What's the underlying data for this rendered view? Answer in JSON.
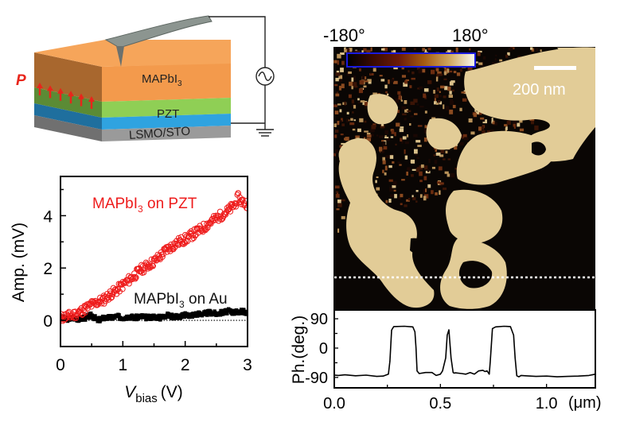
{
  "schematic": {
    "polarization_label": "P",
    "layers": [
      {
        "name": "MAPbI",
        "sub": "3",
        "color": "#f39a4c",
        "side_color": "#a8672e"
      },
      {
        "name": "PZT",
        "sub": "",
        "color": "#8fcf55",
        "side_color": "#5b8b35"
      },
      {
        "name": "LSMO/STO",
        "sub": "",
        "color": "#2fa3e0",
        "side_color": "#1f6f9e"
      },
      {
        "name": "",
        "sub": "",
        "color": "#9a9a9a",
        "side_color": "#707070"
      }
    ],
    "arrow_color": "#e8251b",
    "arrow_count": 6,
    "circuit": {
      "source_symbol": "ac-source",
      "ground_symbol": "ground"
    }
  },
  "colors": {
    "red_series": "#ee1c1c",
    "black_series": "#000000",
    "axis": "#000000",
    "colorbar_border": "#1a1adf",
    "scalebar": "#ffffff",
    "domain_light": "#e2cc97",
    "domain_dark": "#0a0604",
    "domain_mid": "#5e2a10"
  },
  "chart_data": [
    {
      "type": "scatter",
      "title": "",
      "xlabel": "V",
      "xlabel_sub": "bias",
      "xlabel_unit": "(V)",
      "ylabel": "Amp. (mV)",
      "xlim": [
        0,
        3
      ],
      "ylim": [
        -1,
        5.5
      ],
      "xticks": [
        0,
        1,
        2,
        3
      ],
      "xticks_minor": [
        0.5,
        1.5,
        2.5
      ],
      "yticks": [
        0,
        2,
        4
      ],
      "yticks_minor": [
        1,
        3,
        5
      ],
      "zero_line": "dotted",
      "series": [
        {
          "name": "MAPbI3 on PZT",
          "label_main": "MAPbI",
          "label_sub": "3",
          "label_rest": " on PZT",
          "marker": "open-circle",
          "x": [
            0.0,
            0.1,
            0.2,
            0.3,
            0.4,
            0.5,
            0.6,
            0.7,
            0.8,
            0.9,
            1.0,
            1.1,
            1.2,
            1.3,
            1.4,
            1.5,
            1.6,
            1.7,
            1.8,
            1.9,
            2.0,
            2.1,
            2.2,
            2.3,
            2.4,
            2.5,
            2.6,
            2.7,
            2.8,
            2.85,
            2.9,
            3.0
          ],
          "y": [
            0.1,
            0.15,
            0.2,
            0.3,
            0.45,
            0.6,
            0.7,
            0.8,
            1.0,
            1.15,
            1.35,
            1.55,
            1.75,
            1.95,
            2.1,
            2.25,
            2.45,
            2.7,
            2.85,
            3.0,
            3.1,
            3.25,
            3.4,
            3.55,
            3.75,
            3.9,
            4.05,
            4.2,
            4.45,
            4.7,
            4.55,
            4.45
          ]
        },
        {
          "name": "MAPbI3 on Au",
          "label_main": "MAPbI",
          "label_sub": "3",
          "label_rest": " on Au",
          "marker": "filled-square",
          "x": [
            0.0,
            0.1,
            0.2,
            0.3,
            0.4,
            0.5,
            0.6,
            0.7,
            0.8,
            0.9,
            1.0,
            1.1,
            1.2,
            1.3,
            1.4,
            1.5,
            1.6,
            1.7,
            1.8,
            1.9,
            2.0,
            2.1,
            2.2,
            2.3,
            2.4,
            2.5,
            2.6,
            2.7,
            2.8,
            2.9,
            3.0
          ],
          "y": [
            0.1,
            0.05,
            0.1,
            0.05,
            0.1,
            0.2,
            0.0,
            0.1,
            0.1,
            0.15,
            0.1,
            0.15,
            0.1,
            0.15,
            0.1,
            0.15,
            0.1,
            0.2,
            0.15,
            0.15,
            0.2,
            0.2,
            0.25,
            0.25,
            0.3,
            0.25,
            0.3,
            0.35,
            0.3,
            0.35,
            0.3
          ]
        }
      ]
    },
    {
      "type": "line",
      "title": "",
      "xlabel": "",
      "xlabel_unit": "(μm)",
      "ylabel": "Ph.(deg.)",
      "xlim": [
        0,
        1.23
      ],
      "ylim": [
        -122,
        117
      ],
      "xticks": [
        0.0,
        0.5,
        1.0
      ],
      "xtick_labels": [
        "0.0",
        "0.5",
        "1.0"
      ],
      "xticks_minor": [
        0.25,
        0.75
      ],
      "yticks": [
        90,
        0,
        -90
      ],
      "yticks_minor": [
        45,
        -45
      ],
      "series": [
        {
          "name": "phase profile",
          "x": [
            0.0,
            0.02,
            0.05,
            0.1,
            0.15,
            0.2,
            0.23,
            0.255,
            0.262,
            0.27,
            0.28,
            0.33,
            0.37,
            0.38,
            0.385,
            0.39,
            0.4,
            0.43,
            0.46,
            0.48,
            0.5,
            0.51,
            0.525,
            0.532,
            0.54,
            0.55,
            0.56,
            0.565,
            0.57,
            0.6,
            0.62,
            0.64,
            0.66,
            0.68,
            0.7,
            0.71,
            0.72,
            0.73,
            0.735,
            0.745,
            0.76,
            0.8,
            0.83,
            0.845,
            0.852,
            0.86,
            0.87,
            0.88,
            0.9,
            0.95,
            1.0,
            1.05,
            1.1,
            1.15,
            1.2,
            1.23
          ],
          "y": [
            -83,
            -84,
            -82,
            -85,
            -83,
            -87,
            -86,
            -80,
            -40,
            55,
            66,
            67,
            65,
            50,
            0,
            -70,
            -78,
            -75,
            -75,
            -84,
            -80,
            -70,
            -30,
            40,
            56,
            -30,
            -75,
            -77,
            -76,
            -78,
            -80,
            -75,
            -80,
            -70,
            -68,
            -72,
            -70,
            -80,
            -40,
            60,
            65,
            67,
            66,
            40,
            -30,
            -85,
            -88,
            -84,
            -85,
            -87,
            -86,
            -88,
            -87,
            -86,
            -84,
            -80
          ]
        }
      ]
    }
  ],
  "phase_map": {
    "colorbar_min_label": "-180°",
    "colorbar_max_label": "180°",
    "colorbar_stops": [
      "#000000",
      "#3a0a02",
      "#6b1a08",
      "#a45a10",
      "#d0a860",
      "#fbfaf2"
    ],
    "scalebar_label": "200 nm",
    "linecut": "dotted"
  }
}
